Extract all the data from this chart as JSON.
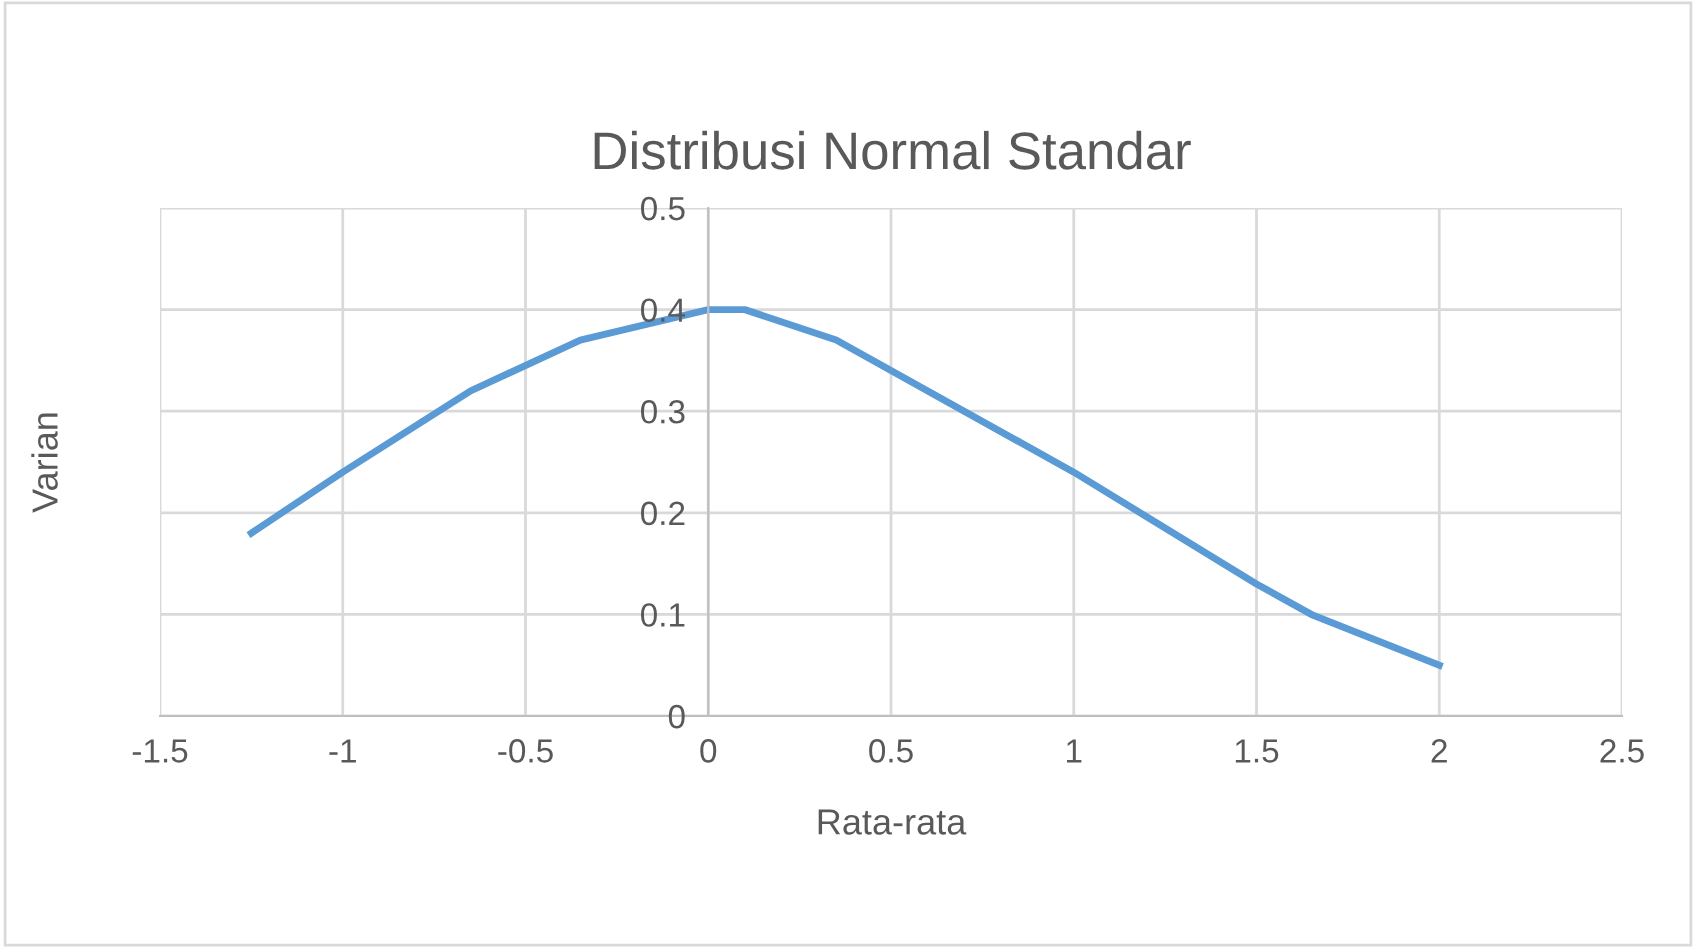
{
  "chart_data": {
    "type": "line",
    "title": "Distribusi Normal Standar",
    "xlabel": "Rata-rata",
    "ylabel": "Varian",
    "series": [
      {
        "color": "#5b9bd5",
        "x": [
          -1.25,
          -1.0,
          -0.65,
          -0.35,
          0.0,
          0.1,
          0.35,
          1.0,
          1.5,
          1.65,
          2.0
        ],
        "values": [
          0.18,
          0.24,
          0.32,
          0.37,
          0.4,
          0.4,
          0.37,
          0.24,
          0.13,
          0.1,
          0.05
        ]
      }
    ],
    "xlim": [
      -1.5,
      2.5
    ],
    "xticks": [
      -1.5,
      -1,
      -0.5,
      0,
      0.5,
      1,
      1.5,
      2,
      2.5
    ],
    "ylim": [
      0,
      0.5
    ],
    "yticks": [
      0,
      0.1,
      0.2,
      0.3,
      0.4,
      0.5
    ],
    "grid": true,
    "marker": "none",
    "line_style": "solid",
    "legend": false
  }
}
